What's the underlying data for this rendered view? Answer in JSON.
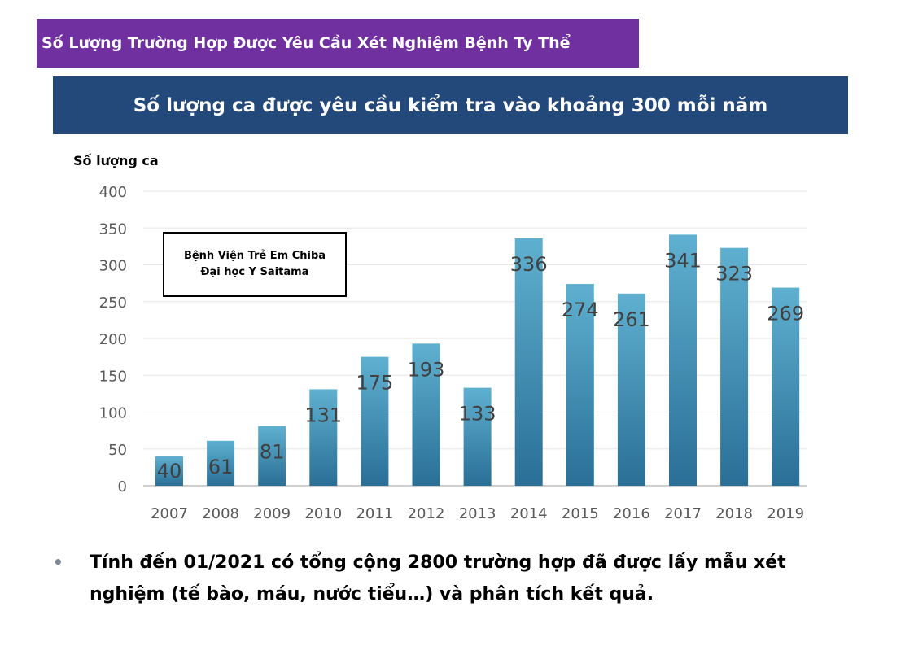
{
  "header": {
    "title": "Số Lượng Trường Hợp Được Yêu Cầu Xét Nghiệm Bệnh Ty Thể",
    "subtitle": "Số lượng ca được yêu cầu kiểm tra vào khoảng 300 mỗi năm"
  },
  "legend_box": {
    "line1": "Bệnh Viện Trẻ Em Chiba",
    "line2": "Đại học Y Saitama"
  },
  "note": {
    "bullet": "•",
    "text": "Tính đến 01/2021 có tổng cộng 2800 trường hợp đã được lấy mẫu xét nghiệm (tế bào, máu, nước tiểu…) và phân tích kết quả."
  },
  "colors": {
    "title_bg": "#7030a0",
    "subtitle_bg": "#23497a",
    "bar_top": "#5fb0d0",
    "bar_bottom": "#2a6f96"
  },
  "chart_data": {
    "type": "bar",
    "categories": [
      "2007",
      "2008",
      "2009",
      "2010",
      "2011",
      "2012",
      "2013",
      "2014",
      "2015",
      "2016",
      "2017",
      "2018",
      "2019"
    ],
    "values": [
      40,
      61,
      81,
      131,
      175,
      193,
      133,
      336,
      274,
      261,
      341,
      323,
      269
    ],
    "title": "",
    "xlabel": "",
    "ylabel": "Số lượng ca",
    "ylim": [
      0,
      400
    ],
    "yticks": [
      0,
      50,
      100,
      150,
      200,
      250,
      300,
      350,
      400
    ],
    "grid": true,
    "data_labels": true
  }
}
